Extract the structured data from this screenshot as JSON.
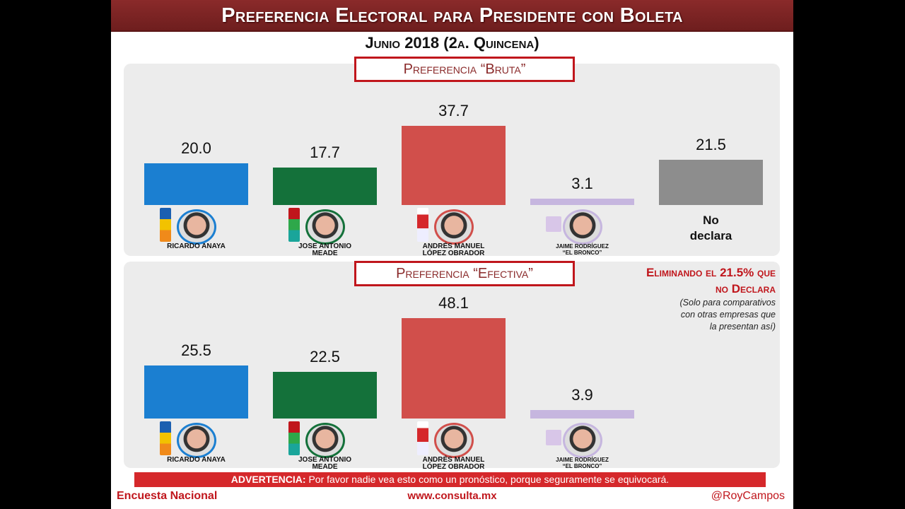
{
  "title": "Preferencia Electoral para Presidente con Boleta",
  "subtitle": "Junio 2018 (2a. Quincena)",
  "note": {
    "heading1": "Eliminando el 21.5% que",
    "heading2": "no Declara",
    "sub1": "(Solo para comparativos",
    "sub2": "con otras empresas que",
    "sub3": "la presentan así)"
  },
  "warning": {
    "label": "ADVERTENCIA:",
    "text": " Por favor nadie vea esto como un pronóstico, porque seguramente se equivocará."
  },
  "footer": {
    "left": "Encuesta Nacional",
    "center": "www.consulta.mx",
    "right": "@RoyCampos"
  },
  "colors": {
    "anaya": "#1b7fd1",
    "meade": "#14713a",
    "amlo": "#d14f4b",
    "bronco": "#c6b6df",
    "no_declara": "#8d8d8d"
  },
  "chart_data": [
    {
      "type": "bar",
      "title": "Preferencia “Bruta”",
      "categories": [
        "Ricardo Anaya",
        "Jose Antonio Meade",
        "Andrés Manuel López Obrador",
        "Jaime Rodríguez \"El Bronco\"",
        "No declara"
      ],
      "values": [
        20.0,
        17.7,
        37.7,
        3.1,
        21.5
      ],
      "ylim": [
        0,
        40
      ]
    },
    {
      "type": "bar",
      "title": "Preferencia “Efectiva”",
      "categories": [
        "Ricardo Anaya",
        "Jose Antonio Meade",
        "Andrés Manuel López Obrador",
        "Jaime Rodríguez \"El Bronco\""
      ],
      "values": [
        25.5,
        22.5,
        48.1,
        3.9
      ],
      "ylim": [
        0,
        50
      ]
    }
  ],
  "candidates": [
    {
      "name1": "RICARDO ANAYA",
      "name2": "",
      "color": "#1b7fd1"
    },
    {
      "name1": "JOSE ANTONIO",
      "name2": "MEADE",
      "color": "#14713a"
    },
    {
      "name1": "ANDRÉS MANUEL",
      "name2": "LÓPEZ OBRADOR",
      "color": "#d14f4b"
    },
    {
      "name1": "JAIME RODRÍGUEZ",
      "name2": "“EL BRONCO”",
      "color": "#c6b6df"
    }
  ],
  "no_declara": {
    "line1": "No",
    "line2": "declara"
  }
}
